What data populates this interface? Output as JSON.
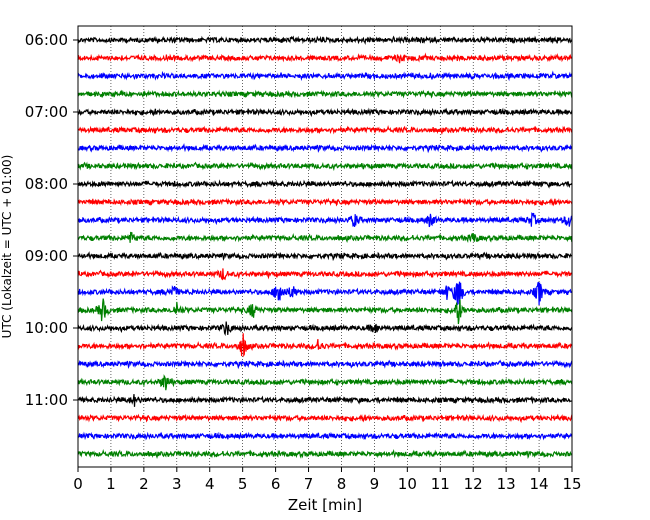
{
  "chart_data": {
    "type": "line",
    "title": "",
    "xlabel": "Zeit  [min]",
    "ylabel": "UTC (Lokalzeit = UTC + 01:00)",
    "xlim": [
      0,
      15
    ],
    "xticks": [
      "0",
      "1",
      "2",
      "3",
      "4",
      "5",
      "6",
      "7",
      "8",
      "9",
      "10",
      "11",
      "12",
      "13",
      "14",
      "15"
    ],
    "yticks": [
      "06:00",
      "07:00",
      "08:00",
      "09:00",
      "10:00",
      "11:00"
    ],
    "trace_interval_min": 15,
    "first_trace_time": "06:00",
    "grid": "vertical dotted",
    "colors_cycle": [
      "#000000",
      "#ff0000",
      "#0000ff",
      "#008000"
    ],
    "series": [
      {
        "start": "06:00",
        "color": "#000000",
        "events": []
      },
      {
        "start": "06:15",
        "color": "#ff0000",
        "events": [
          {
            "t": 9.8,
            "amp": 0.35
          }
        ]
      },
      {
        "start": "06:30",
        "color": "#0000ff",
        "events": []
      },
      {
        "start": "06:45",
        "color": "#008000",
        "events": []
      },
      {
        "start": "07:00",
        "color": "#000000",
        "events": []
      },
      {
        "start": "07:15",
        "color": "#ff0000",
        "events": []
      },
      {
        "start": "07:30",
        "color": "#0000ff",
        "events": []
      },
      {
        "start": "07:45",
        "color": "#008000",
        "events": []
      },
      {
        "start": "08:00",
        "color": "#000000",
        "events": []
      },
      {
        "start": "08:15",
        "color": "#ff0000",
        "events": []
      },
      {
        "start": "08:30",
        "color": "#0000ff",
        "events": [
          {
            "t": 8.4,
            "amp": 0.5
          },
          {
            "t": 10.7,
            "amp": 0.5
          },
          {
            "t": 13.8,
            "amp": 0.5
          },
          {
            "t": 14.9,
            "amp": 0.5
          }
        ]
      },
      {
        "start": "08:45",
        "color": "#008000",
        "events": [
          {
            "t": 1.6,
            "amp": 0.4
          },
          {
            "t": 12.0,
            "amp": 0.4
          }
        ]
      },
      {
        "start": "09:00",
        "color": "#000000",
        "events": []
      },
      {
        "start": "09:15",
        "color": "#ff0000",
        "events": [
          {
            "t": 4.4,
            "amp": 0.4
          }
        ]
      },
      {
        "start": "09:30",
        "color": "#0000ff",
        "events": [
          {
            "t": 2.9,
            "amp": 0.5
          },
          {
            "t": 6.1,
            "amp": 1.2
          },
          {
            "t": 6.5,
            "amp": 0.5
          },
          {
            "t": 11.2,
            "amp": 0.5
          },
          {
            "t": 11.55,
            "amp": 1.4
          },
          {
            "t": 14.0,
            "amp": 0.9
          }
        ]
      },
      {
        "start": "09:45",
        "color": "#008000",
        "events": [
          {
            "t": 0.75,
            "amp": 0.9
          },
          {
            "t": 3.0,
            "amp": 0.5
          },
          {
            "t": 5.3,
            "amp": 0.6
          },
          {
            "t": 11.55,
            "amp": 1.0
          }
        ]
      },
      {
        "start": "10:00",
        "color": "#000000",
        "events": [
          {
            "t": 4.5,
            "amp": 0.5
          },
          {
            "t": 9.0,
            "amp": 0.4
          }
        ]
      },
      {
        "start": "10:15",
        "color": "#ff0000",
        "events": [
          {
            "t": 5.0,
            "amp": 1.0
          },
          {
            "t": 7.3,
            "amp": 0.4
          }
        ]
      },
      {
        "start": "10:30",
        "color": "#0000ff",
        "events": []
      },
      {
        "start": "10:45",
        "color": "#008000",
        "events": [
          {
            "t": 2.65,
            "amp": 0.7
          }
        ]
      },
      {
        "start": "11:00",
        "color": "#000000",
        "events": [
          {
            "t": 1.7,
            "amp": 0.4
          }
        ]
      },
      {
        "start": "11:15",
        "color": "#ff0000",
        "events": []
      },
      {
        "start": "11:30",
        "color": "#0000ff",
        "events": []
      },
      {
        "start": "11:45",
        "color": "#008000",
        "events": []
      }
    ]
  }
}
